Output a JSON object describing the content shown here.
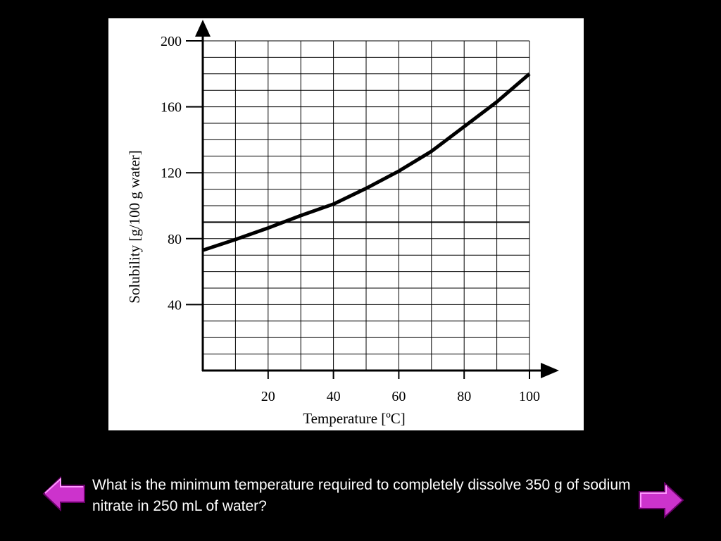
{
  "colors": {
    "background": "#000000",
    "panel": "#ffffff",
    "ink": "#000000",
    "nav_arrow_fill": "#cc33cc",
    "nav_arrow_light": "#ff99ff",
    "nav_arrow_dark": "#660066"
  },
  "question": {
    "text": "What is the minimum temperature required to completely dissolve 350 g of sodium nitrate in 250 mL of water?"
  },
  "nav": {
    "prev_icon": "left-arrow-icon",
    "next_icon": "right-arrow-icon"
  },
  "chart_data": {
    "type": "line",
    "title": "",
    "xlabel": "Temperature [ºC]",
    "ylabel": "Solubility [g/100 g water]",
    "xlim": [
      0,
      100
    ],
    "ylim": [
      0,
      200
    ],
    "x_ticks": [
      20,
      40,
      60,
      80,
      100
    ],
    "y_ticks": [
      40,
      80,
      120,
      160,
      200
    ],
    "x_tick_labels": [
      "20",
      "40",
      "60",
      "80",
      "100"
    ],
    "y_tick_labels": [
      "40",
      "80",
      "120",
      "160",
      "200"
    ],
    "grid": true,
    "grid_x_step": 10,
    "grid_y_step": 10,
    "reference_line": {
      "y": 90
    },
    "series": [
      {
        "x": [
          0,
          10,
          20,
          30,
          40,
          50,
          60,
          70,
          80,
          90,
          100
        ],
        "y": [
          73,
          79.5,
          86.5,
          94,
          101,
          110.5,
          121,
          133,
          148,
          163,
          180
        ]
      }
    ]
  }
}
